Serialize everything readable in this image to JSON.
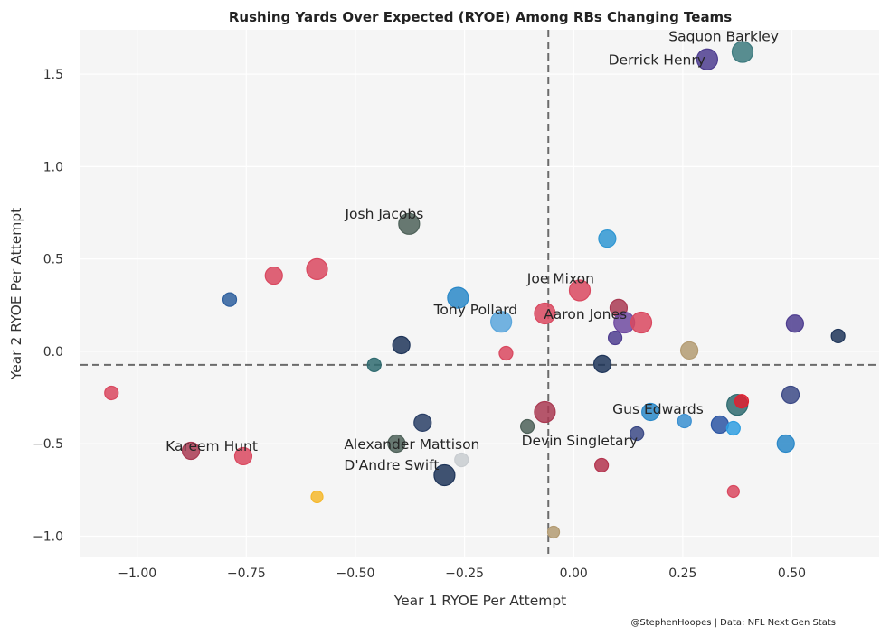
{
  "chart_data": {
    "type": "scatter",
    "title": "Rushing Yards Over Expected (RYOE) Among RBs Changing Teams",
    "xlabel": "Year 1 RYOE Per Attempt",
    "ylabel": "Year 2 RYOE Per Attempt",
    "xlim": [
      -1.13,
      0.7
    ],
    "ylim": [
      -1.11,
      1.74
    ],
    "xticks": [
      -1.0,
      -0.75,
      -0.5,
      -0.25,
      0.0,
      0.25,
      0.5
    ],
    "xtick_labels": [
      "−1.00",
      "−0.75",
      "−0.50",
      "−0.25",
      "0.00",
      "0.25",
      "0.50"
    ],
    "yticks": [
      -1.0,
      -0.5,
      0.0,
      0.5,
      1.0,
      1.5
    ],
    "ytick_labels": [
      "−1.0",
      "−0.5",
      "0.0",
      "0.5",
      "1.0",
      "1.5"
    ],
    "grid": true,
    "reference_lines": {
      "x_mean": -0.058,
      "y_mean": -0.073
    },
    "credit": "@StephenHoopes | Data: NFL Next Gen Stats",
    "points": [
      {
        "x": 0.387,
        "y": 1.62,
        "size": "large",
        "color": "#3c7a7e",
        "label": "Saquon Barkley"
      },
      {
        "x": 0.306,
        "y": 1.58,
        "size": "large",
        "color": "#4e3d8f",
        "label": "Derrick Henry"
      },
      {
        "x": -0.377,
        "y": 0.69,
        "size": "large",
        "color": "#4e6159",
        "label": "Josh Jacobs"
      },
      {
        "x": 0.077,
        "y": 0.61,
        "size": "medium",
        "color": "#2f96d2",
        "label": ""
      },
      {
        "x": -0.588,
        "y": 0.445,
        "size": "large",
        "color": "#d9485f",
        "label": ""
      },
      {
        "x": -0.687,
        "y": 0.41,
        "size": "medium",
        "color": "#d9485f",
        "label": ""
      },
      {
        "x": -0.788,
        "y": 0.28,
        "size": "small",
        "color": "#2e5f9e",
        "label": ""
      },
      {
        "x": 0.014,
        "y": 0.33,
        "size": "large",
        "color": "#d9485f",
        "label": "Joe Mixon"
      },
      {
        "x": -0.265,
        "y": 0.29,
        "size": "large",
        "color": "#2a88c8",
        "label": ""
      },
      {
        "x": -0.166,
        "y": 0.16,
        "size": "large",
        "color": "#5aa6dc",
        "label": "Tony Pollard"
      },
      {
        "x": -0.066,
        "y": 0.205,
        "size": "large",
        "color": "#d9485f",
        "label": ""
      },
      {
        "x": 0.103,
        "y": 0.235,
        "size": "medium",
        "color": "#a93a52",
        "label": ""
      },
      {
        "x": 0.116,
        "y": 0.156,
        "size": "large",
        "color": "#6e4aa0",
        "label": "Aaron Jones"
      },
      {
        "x": 0.155,
        "y": 0.156,
        "size": "large",
        "color": "#d9485f",
        "label": ""
      },
      {
        "x": 0.095,
        "y": 0.073,
        "size": "small",
        "color": "#4e3d8f",
        "label": ""
      },
      {
        "x": 0.507,
        "y": 0.15,
        "size": "medium",
        "color": "#4e3d8f",
        "label": ""
      },
      {
        "x": 0.606,
        "y": 0.083,
        "size": "small",
        "color": "#1f3559",
        "label": ""
      },
      {
        "x": 0.265,
        "y": 0.005,
        "size": "medium",
        "color": "#b39b72",
        "label": ""
      },
      {
        "x": -0.155,
        "y": -0.01,
        "size": "small",
        "color": "#d9485f",
        "label": ""
      },
      {
        "x": -0.395,
        "y": 0.034,
        "size": "medium",
        "color": "#1f3559",
        "label": ""
      },
      {
        "x": 0.066,
        "y": -0.068,
        "size": "medium",
        "color": "#1f3559",
        "label": ""
      },
      {
        "x": -0.457,
        "y": -0.073,
        "size": "small",
        "color": "#2f6b70",
        "label": ""
      },
      {
        "x": -1.059,
        "y": -0.225,
        "size": "small",
        "color": "#d9485f",
        "label": ""
      },
      {
        "x": 0.375,
        "y": -0.289,
        "size": "large",
        "color": "#2f6b70",
        "label": ""
      },
      {
        "x": 0.385,
        "y": -0.27,
        "size": "small",
        "color": "#e02030",
        "label": ""
      },
      {
        "x": 0.497,
        "y": -0.235,
        "size": "medium",
        "color": "#3c4a86",
        "label": ""
      },
      {
        "x": -0.066,
        "y": -0.328,
        "size": "large",
        "color": "#a93a52",
        "label": ""
      },
      {
        "x": 0.176,
        "y": -0.328,
        "size": "medium",
        "color": "#2a88c8",
        "label": "Gus Edwards"
      },
      {
        "x": 0.254,
        "y": -0.377,
        "size": "small",
        "color": "#3a8fd0",
        "label": ""
      },
      {
        "x": -0.106,
        "y": -0.406,
        "size": "small",
        "color": "#4e6159",
        "label": ""
      },
      {
        "x": -0.346,
        "y": -0.386,
        "size": "medium",
        "color": "#2a3f66",
        "label": ""
      },
      {
        "x": 0.335,
        "y": -0.396,
        "size": "medium",
        "color": "#2b55a3",
        "label": ""
      },
      {
        "x": 0.366,
        "y": -0.416,
        "size": "small",
        "color": "#2f9ee0",
        "label": ""
      },
      {
        "x": 0.145,
        "y": -0.445,
        "size": "small",
        "color": "#3c4a86",
        "label": ""
      },
      {
        "x": 0.486,
        "y": -0.499,
        "size": "medium",
        "color": "#2a88c8",
        "label": ""
      },
      {
        "x": -0.406,
        "y": -0.499,
        "size": "medium",
        "color": "#4e6159",
        "label": "Alexander Mattison"
      },
      {
        "x": -0.877,
        "y": -0.538,
        "size": "medium",
        "color": "#a93a52",
        "label": "Kareem Hunt"
      },
      {
        "x": -0.757,
        "y": -0.567,
        "size": "medium",
        "color": "#d9485f",
        "label": ""
      },
      {
        "x": -0.257,
        "y": -0.587,
        "size": "small",
        "color": "#c8ccd0",
        "label": ""
      },
      {
        "x": -0.296,
        "y": -0.67,
        "size": "large",
        "color": "#1f3559",
        "label": "D'Andre Swift"
      },
      {
        "x": 0.064,
        "y": -0.616,
        "size": "small",
        "color": "#b3344e",
        "label": ""
      },
      {
        "x": 0.366,
        "y": -0.758,
        "size": "tiny",
        "color": "#d9485f",
        "label": ""
      },
      {
        "x": -0.588,
        "y": -0.787,
        "size": "tiny",
        "color": "#f5b82e",
        "label": ""
      },
      {
        "x": -0.046,
        "y": -0.978,
        "size": "tiny",
        "color": "#b39b72",
        "label": ""
      }
    ]
  }
}
